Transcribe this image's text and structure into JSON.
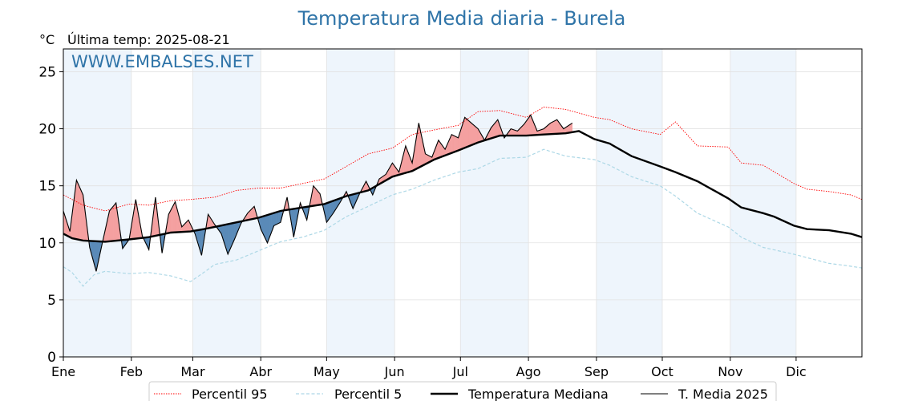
{
  "chart_data": {
    "type": "line",
    "title": "Temperatura Media diaria - Burela",
    "unit": "°C",
    "subtitle": "Última temp: 2025-08-21",
    "watermark": "WWW.EMBALSES.NET",
    "x_range_days": [
      1,
      365
    ],
    "ylim": [
      0,
      27
    ],
    "yticks": [
      0,
      5,
      10,
      15,
      20,
      25
    ],
    "months": [
      "Ene",
      "Feb",
      "Mar",
      "Abr",
      "May",
      "Jun",
      "Jul",
      "Ago",
      "Sep",
      "Oct",
      "Nov",
      "Dic"
    ],
    "grid": true,
    "legend": "bottom",
    "colors": {
      "p95": "#ff0000",
      "p5": "#add8e6",
      "median": "#000000",
      "current": "#000000",
      "above_fill": "#f4a0a0",
      "below_fill": "#5a8ab8",
      "shade": "#eef5fc"
    },
    "series": [
      {
        "name": "Percentil 95",
        "style": "dotted",
        "x": [
          1,
          10,
          20,
          31,
          40,
          50,
          59,
          70,
          80,
          90,
          100,
          110,
          120,
          130,
          140,
          151,
          160,
          170,
          181,
          190,
          200,
          212,
          220,
          230,
          243,
          250,
          260,
          273,
          280,
          290,
          304,
          310,
          320,
          334,
          340,
          350,
          360,
          365
        ],
        "values": [
          14.2,
          13.3,
          12.8,
          13.4,
          13.3,
          13.7,
          13.8,
          14.0,
          14.6,
          14.8,
          14.8,
          15.2,
          15.6,
          16.7,
          17.8,
          18.3,
          19.5,
          19.9,
          20.3,
          21.5,
          21.6,
          21.0,
          21.9,
          21.7,
          21.0,
          20.8,
          20.0,
          19.5,
          20.6,
          18.5,
          18.4,
          17.0,
          16.8,
          15.2,
          14.7,
          14.5,
          14.2,
          13.8
        ]
      },
      {
        "name": "Percentil 5",
        "style": "dashed",
        "x": [
          1,
          5,
          10,
          15,
          20,
          31,
          40,
          50,
          59,
          65,
          70,
          80,
          90,
          100,
          110,
          120,
          130,
          140,
          151,
          160,
          170,
          181,
          190,
          200,
          212,
          220,
          230,
          243,
          250,
          260,
          273,
          280,
          290,
          304,
          310,
          320,
          334,
          340,
          350,
          358,
          365
        ],
        "values": [
          7.9,
          7.4,
          6.2,
          7.2,
          7.5,
          7.3,
          7.4,
          7.1,
          6.6,
          7.4,
          8.1,
          8.5,
          9.3,
          10.1,
          10.5,
          11.1,
          12.3,
          13.2,
          14.2,
          14.7,
          15.5,
          16.2,
          16.5,
          17.4,
          17.5,
          18.2,
          17.6,
          17.3,
          16.8,
          15.8,
          15.0,
          14.1,
          12.6,
          11.4,
          10.5,
          9.6,
          9.0,
          8.7,
          8.2,
          8.0,
          7.8
        ]
      },
      {
        "name": "Temperatura Mediana",
        "style": "solid-thick",
        "x": [
          1,
          5,
          10,
          20,
          31,
          40,
          50,
          59,
          65,
          70,
          80,
          90,
          100,
          110,
          120,
          130,
          140,
          151,
          160,
          170,
          181,
          190,
          200,
          212,
          220,
          230,
          236,
          243,
          250,
          260,
          273,
          280,
          290,
          304,
          310,
          320,
          325,
          334,
          340,
          350,
          360,
          365
        ],
        "values": [
          10.8,
          10.4,
          10.2,
          10.1,
          10.3,
          10.5,
          10.9,
          11.0,
          11.2,
          11.4,
          11.8,
          12.2,
          12.8,
          13.1,
          13.4,
          14.1,
          14.6,
          15.8,
          16.3,
          17.3,
          18.1,
          18.8,
          19.4,
          19.4,
          19.5,
          19.6,
          19.8,
          19.1,
          18.7,
          17.6,
          16.7,
          16.2,
          15.4,
          13.9,
          13.1,
          12.6,
          12.3,
          11.5,
          11.2,
          11.1,
          10.8,
          10.5
        ]
      },
      {
        "name": "T. Media 2025",
        "style": "solid-thin",
        "x": [
          1,
          4,
          7,
          10,
          13,
          16,
          19,
          22,
          25,
          28,
          31,
          34,
          37,
          40,
          43,
          46,
          49,
          52,
          55,
          58,
          61,
          64,
          67,
          70,
          73,
          76,
          79,
          82,
          85,
          88,
          91,
          94,
          97,
          100,
          103,
          106,
          109,
          112,
          115,
          118,
          121,
          124,
          127,
          130,
          133,
          136,
          139,
          142,
          145,
          148,
          151,
          154,
          157,
          160,
          163,
          166,
          169,
          172,
          175,
          178,
          181,
          184,
          187,
          190,
          193,
          196,
          199,
          202,
          205,
          208,
          211,
          214,
          217,
          220,
          223,
          226,
          229,
          233
        ],
        "values": [
          12.8,
          11.0,
          15.5,
          14.2,
          9.6,
          7.5,
          10.2,
          12.8,
          13.5,
          9.5,
          10.3,
          13.8,
          10.6,
          9.4,
          14.0,
          9.1,
          12.5,
          13.6,
          11.4,
          12.0,
          10.8,
          8.9,
          12.5,
          11.6,
          10.8,
          9.0,
          10.3,
          11.7,
          12.6,
          13.2,
          11.2,
          10.0,
          11.5,
          11.8,
          14.0,
          10.5,
          13.5,
          12.0,
          15.0,
          14.3,
          11.8,
          12.6,
          13.5,
          14.5,
          13.0,
          14.3,
          15.4,
          14.2,
          15.6,
          16.0,
          17.0,
          16.2,
          18.5,
          17.0,
          20.5,
          17.8,
          17.5,
          19.0,
          18.2,
          19.5,
          19.2,
          21.0,
          20.5,
          20.0,
          19.0,
          20.1,
          20.8,
          19.2,
          20.0,
          19.8,
          20.4,
          21.2,
          19.8,
          20.0,
          20.5,
          20.8,
          20.0,
          20.5
        ]
      }
    ]
  }
}
